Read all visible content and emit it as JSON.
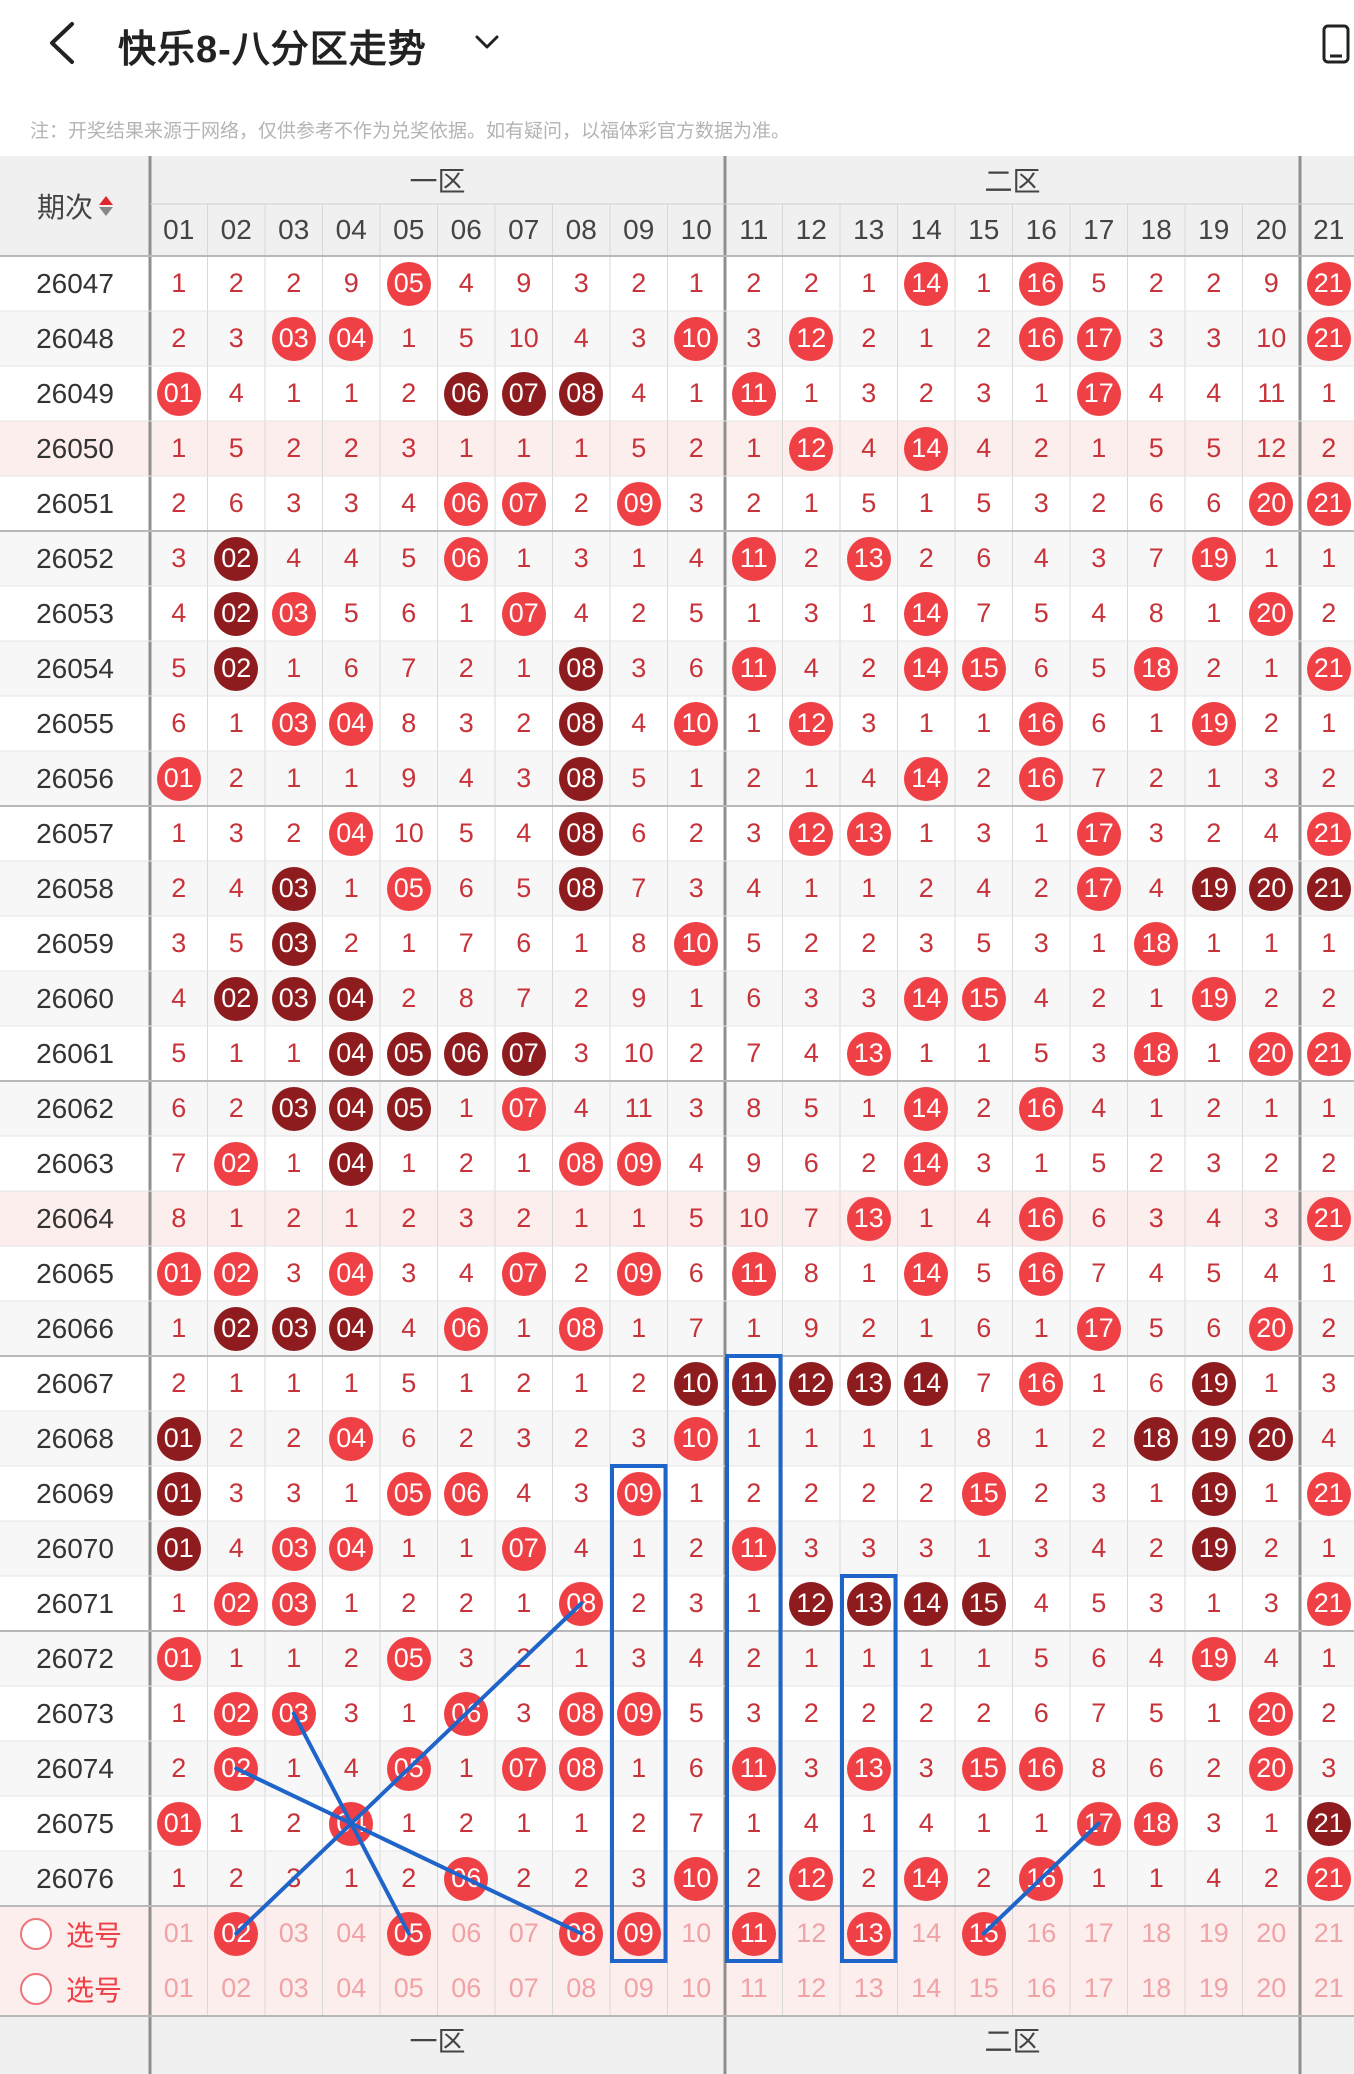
{
  "header": {
    "title": "快乐8-八分区走势",
    "back_icon": "chevron-left-icon",
    "dropdown_icon": "chevron-down-icon",
    "device_icon": "device-icon"
  },
  "notice": "注：开奖结果来源于网络，仅供参考不作为兑奖依据。如有疑问，以福体彩官方数据为准。",
  "table": {
    "period_header": "期次",
    "zones": [
      {
        "label": "一区",
        "from": 1,
        "to": 10
      },
      {
        "label": "二区",
        "from": 11,
        "to": 20
      },
      {
        "label": "",
        "from": 21,
        "to": 21
      }
    ],
    "columns": [
      "01",
      "02",
      "03",
      "04",
      "05",
      "06",
      "07",
      "08",
      "09",
      "10",
      "11",
      "12",
      "13",
      "14",
      "15",
      "16",
      "17",
      "18",
      "19",
      "20",
      "21"
    ],
    "rows": [
      {
        "period": "26047",
        "cells": [
          "1",
          "2",
          "2",
          "9",
          "H05",
          "4",
          "9",
          "3",
          "2",
          "1",
          "2",
          "2",
          "1",
          "H14",
          "1",
          "H16",
          "5",
          "2",
          "2",
          "9",
          "H21"
        ]
      },
      {
        "period": "26048",
        "cells": [
          "2",
          "3",
          "H03",
          "H04",
          "1",
          "5",
          "10",
          "4",
          "3",
          "H10",
          "3",
          "H12",
          "2",
          "1",
          "2",
          "H16",
          "H17",
          "3",
          "3",
          "10",
          "H21"
        ]
      },
      {
        "period": "26049",
        "cells": [
          "H01",
          "4",
          "1",
          "1",
          "2",
          "D06",
          "D07",
          "D08",
          "4",
          "1",
          "H11",
          "1",
          "3",
          "2",
          "3",
          "1",
          "H17",
          "4",
          "4",
          "11",
          "1"
        ]
      },
      {
        "period": "26050",
        "cells": [
          "1",
          "5",
          "2",
          "2",
          "3",
          "1",
          "1",
          "1",
          "5",
          "2",
          "1",
          "H12",
          "4",
          "H14",
          "4",
          "2",
          "1",
          "5",
          "5",
          "12",
          "2"
        ]
      },
      {
        "period": "26051",
        "cells": [
          "2",
          "6",
          "3",
          "3",
          "4",
          "H06",
          "H07",
          "2",
          "H09",
          "3",
          "2",
          "1",
          "5",
          "1",
          "5",
          "3",
          "2",
          "6",
          "6",
          "H20",
          "H21"
        ]
      },
      {
        "period": "26052",
        "cells": [
          "3",
          "D02",
          "4",
          "4",
          "5",
          "H06",
          "1",
          "3",
          "1",
          "4",
          "H11",
          "2",
          "H13",
          "2",
          "6",
          "4",
          "3",
          "7",
          "H19",
          "1",
          "1"
        ]
      },
      {
        "period": "26053",
        "cells": [
          "4",
          "D02",
          "H03",
          "5",
          "6",
          "1",
          "H07",
          "4",
          "2",
          "5",
          "1",
          "3",
          "1",
          "H14",
          "7",
          "5",
          "4",
          "8",
          "1",
          "H20",
          "2"
        ]
      },
      {
        "period": "26054",
        "cells": [
          "5",
          "D02",
          "1",
          "6",
          "7",
          "2",
          "1",
          "D08",
          "3",
          "6",
          "H11",
          "4",
          "2",
          "H14",
          "H15",
          "6",
          "5",
          "H18",
          "2",
          "1",
          "H21"
        ]
      },
      {
        "period": "26055",
        "cells": [
          "6",
          "1",
          "H03",
          "H04",
          "8",
          "3",
          "2",
          "D08",
          "4",
          "H10",
          "1",
          "H12",
          "3",
          "1",
          "1",
          "H16",
          "6",
          "1",
          "H19",
          "2",
          "1"
        ]
      },
      {
        "period": "26056",
        "cells": [
          "H01",
          "2",
          "1",
          "1",
          "9",
          "4",
          "3",
          "D08",
          "5",
          "1",
          "2",
          "1",
          "4",
          "H14",
          "2",
          "H16",
          "7",
          "2",
          "1",
          "3",
          "2"
        ]
      },
      {
        "period": "26057",
        "cells": [
          "1",
          "3",
          "2",
          "H04",
          "10",
          "5",
          "4",
          "D08",
          "6",
          "2",
          "3",
          "H12",
          "H13",
          "1",
          "3",
          "1",
          "H17",
          "3",
          "2",
          "4",
          "H21"
        ]
      },
      {
        "period": "26058",
        "cells": [
          "2",
          "4",
          "D03",
          "1",
          "H05",
          "6",
          "5",
          "D08",
          "7",
          "3",
          "4",
          "1",
          "1",
          "2",
          "4",
          "2",
          "H17",
          "4",
          "D19",
          "D20",
          "D21"
        ]
      },
      {
        "period": "26059",
        "cells": [
          "3",
          "5",
          "D03",
          "2",
          "1",
          "7",
          "6",
          "1",
          "8",
          "H10",
          "5",
          "2",
          "2",
          "3",
          "5",
          "3",
          "1",
          "H18",
          "1",
          "1",
          "1"
        ]
      },
      {
        "period": "26060",
        "cells": [
          "4",
          "D02",
          "D03",
          "D04",
          "2",
          "8",
          "7",
          "2",
          "9",
          "1",
          "6",
          "3",
          "3",
          "H14",
          "H15",
          "4",
          "2",
          "1",
          "H19",
          "2",
          "2"
        ]
      },
      {
        "period": "26061",
        "cells": [
          "5",
          "1",
          "1",
          "D04",
          "D05",
          "D06",
          "D07",
          "3",
          "10",
          "2",
          "7",
          "4",
          "H13",
          "1",
          "1",
          "5",
          "3",
          "H18",
          "1",
          "H20",
          "H21"
        ]
      },
      {
        "period": "26062",
        "cells": [
          "6",
          "2",
          "D03",
          "D04",
          "D05",
          "1",
          "H07",
          "4",
          "11",
          "3",
          "8",
          "5",
          "1",
          "H14",
          "2",
          "H16",
          "4",
          "1",
          "2",
          "1",
          "1"
        ]
      },
      {
        "period": "26063",
        "cells": [
          "7",
          "H02",
          "1",
          "D04",
          "1",
          "2",
          "1",
          "H08",
          "H09",
          "4",
          "9",
          "6",
          "2",
          "H14",
          "3",
          "1",
          "5",
          "2",
          "3",
          "2",
          "2"
        ]
      },
      {
        "period": "26064",
        "cells": [
          "8",
          "1",
          "2",
          "1",
          "2",
          "3",
          "2",
          "1",
          "1",
          "5",
          "10",
          "7",
          "H13",
          "1",
          "4",
          "H16",
          "6",
          "3",
          "4",
          "3",
          "H21"
        ]
      },
      {
        "period": "26065",
        "cells": [
          "H01",
          "H02",
          "3",
          "H04",
          "3",
          "4",
          "H07",
          "2",
          "H09",
          "6",
          "H11",
          "8",
          "1",
          "H14",
          "5",
          "H16",
          "7",
          "4",
          "5",
          "4",
          "1"
        ]
      },
      {
        "period": "26066",
        "cells": [
          "1",
          "D02",
          "D03",
          "D04",
          "4",
          "H06",
          "1",
          "H08",
          "1",
          "7",
          "1",
          "9",
          "2",
          "1",
          "6",
          "1",
          "H17",
          "5",
          "6",
          "H20",
          "2"
        ]
      },
      {
        "period": "26067",
        "cells": [
          "2",
          "1",
          "1",
          "1",
          "5",
          "1",
          "2",
          "1",
          "2",
          "D10",
          "D11",
          "D12",
          "D13",
          "D14",
          "7",
          "H16",
          "1",
          "6",
          "D19",
          "1",
          "3"
        ]
      },
      {
        "period": "26068",
        "cells": [
          "D01",
          "2",
          "2",
          "H04",
          "6",
          "2",
          "3",
          "2",
          "3",
          "H10",
          "1",
          "1",
          "1",
          "1",
          "8",
          "1",
          "2",
          "D18",
          "D19",
          "D20",
          "4"
        ]
      },
      {
        "period": "26069",
        "cells": [
          "D01",
          "3",
          "3",
          "1",
          "H05",
          "H06",
          "4",
          "3",
          "H09",
          "1",
          "2",
          "2",
          "2",
          "2",
          "H15",
          "2",
          "3",
          "1",
          "D19",
          "1",
          "H21"
        ]
      },
      {
        "period": "26070",
        "cells": [
          "D01",
          "4",
          "H03",
          "H04",
          "1",
          "1",
          "H07",
          "4",
          "1",
          "2",
          "H11",
          "3",
          "3",
          "3",
          "1",
          "3",
          "4",
          "2",
          "D19",
          "2",
          "1"
        ]
      },
      {
        "period": "26071",
        "cells": [
          "1",
          "H02",
          "H03",
          "1",
          "2",
          "2",
          "1",
          "H08",
          "2",
          "3",
          "1",
          "D12",
          "D13",
          "D14",
          "D15",
          "4",
          "5",
          "3",
          "1",
          "3",
          "H21"
        ]
      },
      {
        "period": "26072",
        "cells": [
          "H01",
          "1",
          "1",
          "2",
          "H05",
          "3",
          "2",
          "1",
          "3",
          "4",
          "2",
          "1",
          "1",
          "1",
          "1",
          "5",
          "6",
          "4",
          "H19",
          "4",
          "1"
        ]
      },
      {
        "period": "26073",
        "cells": [
          "1",
          "H02",
          "H03",
          "3",
          "1",
          "H06",
          "3",
          "H08",
          "H09",
          "5",
          "3",
          "2",
          "2",
          "2",
          "2",
          "6",
          "7",
          "5",
          "1",
          "H20",
          "2"
        ]
      },
      {
        "period": "26074",
        "cells": [
          "2",
          "H02",
          "1",
          "4",
          "H05",
          "1",
          "H07",
          "H08",
          "1",
          "6",
          "H11",
          "3",
          "H13",
          "3",
          "H15",
          "H16",
          "8",
          "6",
          "2",
          "H20",
          "3"
        ]
      },
      {
        "period": "26075",
        "cells": [
          "H01",
          "1",
          "2",
          "H04",
          "1",
          "2",
          "1",
          "1",
          "2",
          "7",
          "1",
          "4",
          "1",
          "4",
          "1",
          "1",
          "H17",
          "H18",
          "3",
          "1",
          "D21"
        ]
      },
      {
        "period": "26076",
        "cells": [
          "1",
          "2",
          "3",
          "1",
          "2",
          "H06",
          "2",
          "2",
          "3",
          "H10",
          "2",
          "H12",
          "2",
          "H14",
          "2",
          "H16",
          "1",
          "1",
          "4",
          "2",
          "H21"
        ]
      }
    ],
    "select_label": "选号",
    "select_row_1_chosen": [
      "02",
      "05",
      "08",
      "09",
      "11",
      "13",
      "15"
    ],
    "select_row_2_chosen": [],
    "footer_zones": [
      "一区",
      "二区"
    ]
  },
  "colors": {
    "hit": "#ef4046",
    "repeat_hit": "#8e1c1f",
    "miss_text": "#c8333a",
    "annotation_line": "#1f64c8"
  }
}
